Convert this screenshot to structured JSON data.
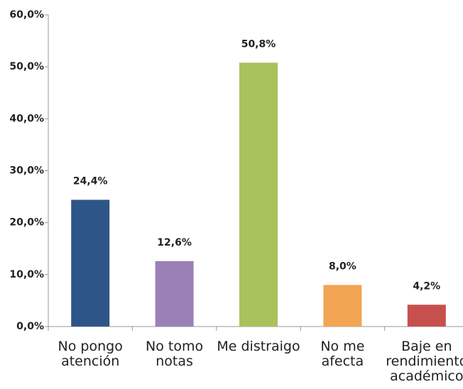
{
  "chart_data": {
    "type": "bar",
    "categories": [
      "No pongo\natención",
      "No tomo\nnotas",
      "Me distraigo",
      "No me\nafecta",
      "Baje en\nrendimiento\nacadémico"
    ],
    "values": [
      24.4,
      12.6,
      50.8,
      8.0,
      4.2
    ],
    "value_labels": [
      "24,4%",
      "12,6%",
      "50,8%",
      "8,0%",
      "4,2%"
    ],
    "colors": [
      "#2e5587",
      "#9b80b7",
      "#a9c25b",
      "#f2a553",
      "#c6504e"
    ],
    "ylim": [
      0,
      60
    ],
    "yticks": [
      {
        "value": 0,
        "label": "0,0%"
      },
      {
        "value": 10,
        "label": "10,0%"
      },
      {
        "value": 20,
        "label": "20,0%"
      },
      {
        "value": 30,
        "label": "30,0%"
      },
      {
        "value": 40,
        "label": "40,0%"
      },
      {
        "value": 50,
        "label": "50,0%"
      },
      {
        "value": 60,
        "label": "60,0%"
      }
    ],
    "grid": false
  }
}
